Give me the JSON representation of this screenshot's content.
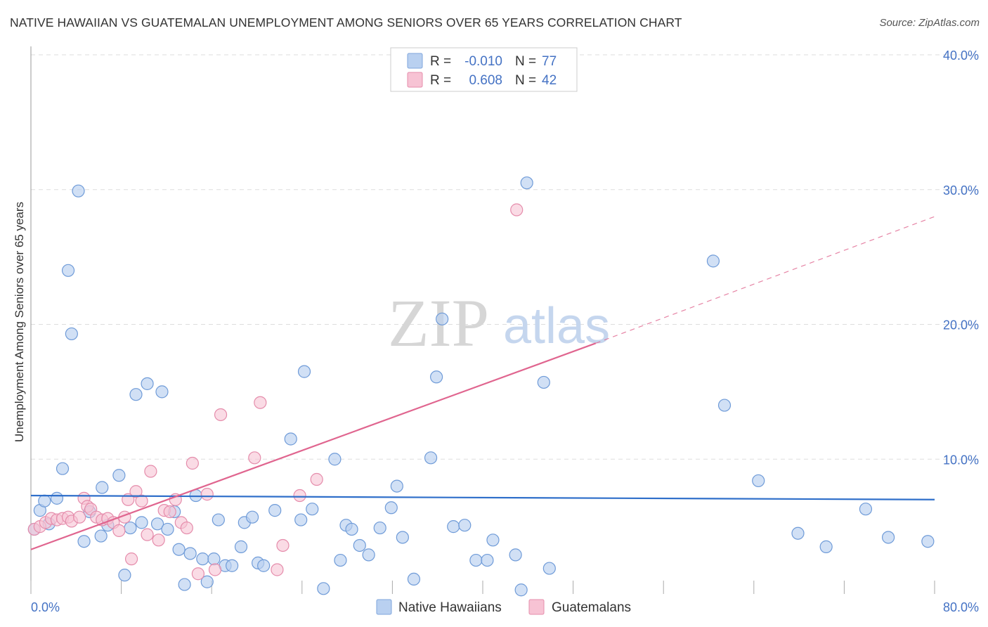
{
  "title": "NATIVE HAWAIIAN VS GUATEMALAN UNEMPLOYMENT AMONG SENIORS OVER 65 YEARS CORRELATION CHART",
  "source": "Source: ZipAtlas.com",
  "watermark": {
    "zip": "ZIP",
    "atlas": "atlas"
  },
  "colors": {
    "blue": "#4472c4",
    "blue_fill": "#b9d0f0",
    "blue_line": "#2f6fca",
    "pink_fill": "#f7c3d4",
    "pink_stroke": "#e58cab",
    "pink_line": "#e0658f",
    "grid": "#dddddd"
  },
  "legend": {
    "rows": [
      {
        "r_label": "R =",
        "r_value": "-0.010",
        "n_label": "N =",
        "n_value": "77"
      },
      {
        "r_label": "R =",
        "r_value": "0.608",
        "n_label": "N =",
        "n_value": "42"
      }
    ]
  },
  "chart_data": {
    "type": "scatter",
    "title": "NATIVE HAWAIIAN VS GUATEMALAN UNEMPLOYMENT AMONG SENIORS OVER 65 YEARS CORRELATION CHART",
    "xlabel": "",
    "ylabel": "Unemployment Among Seniors over 65 years",
    "xlim": [
      0,
      80
    ],
    "ylim": [
      0,
      40
    ],
    "x_tick_labels": [
      "0.0%",
      "80.0%"
    ],
    "y_ticks": [
      10,
      20,
      30,
      40
    ],
    "y_tick_labels": [
      "10.0%",
      "20.0%",
      "30.0%",
      "40.0%"
    ],
    "grid": true,
    "legend_position": "bottom-center",
    "series": [
      {
        "name": "Native Hawaiians",
        "r": -0.01,
        "n": 77,
        "trend": {
          "x0": 0,
          "y0": 7.3,
          "x1": 80,
          "y1": 7.0,
          "style": "solid"
        },
        "points": [
          [
            0.3,
            4.8
          ],
          [
            0.8,
            6.2
          ],
          [
            1.2,
            6.9
          ],
          [
            1.6,
            5.2
          ],
          [
            2.3,
            7.1
          ],
          [
            2.8,
            9.3
          ],
          [
            3.3,
            24.0
          ],
          [
            3.6,
            19.3
          ],
          [
            4.2,
            29.9
          ],
          [
            4.7,
            3.9
          ],
          [
            5.2,
            6.1
          ],
          [
            6.2,
            4.3
          ],
          [
            6.3,
            7.9
          ],
          [
            6.8,
            5.1
          ],
          [
            7.8,
            8.8
          ],
          [
            8.3,
            1.4
          ],
          [
            8.8,
            4.9
          ],
          [
            9.3,
            14.8
          ],
          [
            9.8,
            5.3
          ],
          [
            10.3,
            15.6
          ],
          [
            11.2,
            5.2
          ],
          [
            11.6,
            15.0
          ],
          [
            12.1,
            4.8
          ],
          [
            12.7,
            6.1
          ],
          [
            13.1,
            3.3
          ],
          [
            13.6,
            0.7
          ],
          [
            14.1,
            3.0
          ],
          [
            14.6,
            7.3
          ],
          [
            15.2,
            2.6
          ],
          [
            15.6,
            0.9
          ],
          [
            16.2,
            2.6
          ],
          [
            16.6,
            5.5
          ],
          [
            17.2,
            2.1
          ],
          [
            17.8,
            2.1
          ],
          [
            18.6,
            3.5
          ],
          [
            18.9,
            5.3
          ],
          [
            19.6,
            5.7
          ],
          [
            20.1,
            2.3
          ],
          [
            20.6,
            2.1
          ],
          [
            21.6,
            6.2
          ],
          [
            23.0,
            11.5
          ],
          [
            23.9,
            5.5
          ],
          [
            24.2,
            16.5
          ],
          [
            24.9,
            6.3
          ],
          [
            25.9,
            0.4
          ],
          [
            26.9,
            10.0
          ],
          [
            27.4,
            2.5
          ],
          [
            27.9,
            5.1
          ],
          [
            28.4,
            4.8
          ],
          [
            29.1,
            3.6
          ],
          [
            29.9,
            2.9
          ],
          [
            30.9,
            4.9
          ],
          [
            31.9,
            6.4
          ],
          [
            32.4,
            8.0
          ],
          [
            32.9,
            4.2
          ],
          [
            33.9,
            1.1
          ],
          [
            35.4,
            10.1
          ],
          [
            35.9,
            16.1
          ],
          [
            36.4,
            20.4
          ],
          [
            37.4,
            5.0
          ],
          [
            38.4,
            5.1
          ],
          [
            39.4,
            2.5
          ],
          [
            40.4,
            2.5
          ],
          [
            40.9,
            4.0
          ],
          [
            42.9,
            2.9
          ],
          [
            43.4,
            0.3
          ],
          [
            43.9,
            30.5
          ],
          [
            45.4,
            15.7
          ],
          [
            45.9,
            1.9
          ],
          [
            60.4,
            24.7
          ],
          [
            61.4,
            14.0
          ],
          [
            64.4,
            8.4
          ],
          [
            67.9,
            4.5
          ],
          [
            70.4,
            3.5
          ],
          [
            73.9,
            6.3
          ],
          [
            75.9,
            4.2
          ],
          [
            79.4,
            3.9
          ]
        ]
      },
      {
        "name": "Guatemalans",
        "r": 0.608,
        "n": 42,
        "trend": {
          "x0": 0,
          "y0": 3.3,
          "x1": 50,
          "y1": 18.6,
          "style": "solid",
          "extension": {
            "x1": 80,
            "y1": 28.0,
            "style": "dashed"
          }
        },
        "points": [
          [
            0.3,
            4.8
          ],
          [
            0.8,
            5.0
          ],
          [
            1.3,
            5.3
          ],
          [
            1.8,
            5.6
          ],
          [
            2.3,
            5.5
          ],
          [
            2.8,
            5.6
          ],
          [
            3.3,
            5.7
          ],
          [
            3.6,
            5.4
          ],
          [
            4.3,
            5.7
          ],
          [
            4.7,
            7.1
          ],
          [
            5.0,
            6.5
          ],
          [
            5.3,
            6.3
          ],
          [
            5.8,
            5.7
          ],
          [
            6.3,
            5.5
          ],
          [
            6.8,
            5.6
          ],
          [
            7.3,
            5.3
          ],
          [
            7.8,
            4.7
          ],
          [
            8.3,
            5.7
          ],
          [
            8.6,
            7.0
          ],
          [
            8.9,
            2.6
          ],
          [
            9.3,
            7.6
          ],
          [
            9.8,
            6.9
          ],
          [
            10.3,
            4.4
          ],
          [
            10.6,
            9.1
          ],
          [
            11.3,
            4.0
          ],
          [
            11.8,
            6.2
          ],
          [
            12.3,
            6.1
          ],
          [
            12.8,
            7.0
          ],
          [
            13.3,
            5.3
          ],
          [
            13.8,
            4.9
          ],
          [
            14.3,
            9.7
          ],
          [
            14.8,
            1.5
          ],
          [
            15.6,
            7.4
          ],
          [
            16.3,
            1.8
          ],
          [
            16.8,
            13.3
          ],
          [
            19.8,
            10.1
          ],
          [
            20.3,
            14.2
          ],
          [
            21.8,
            1.8
          ],
          [
            22.3,
            3.6
          ],
          [
            23.8,
            7.3
          ],
          [
            25.3,
            8.5
          ],
          [
            43.0,
            28.5
          ]
        ]
      }
    ]
  }
}
